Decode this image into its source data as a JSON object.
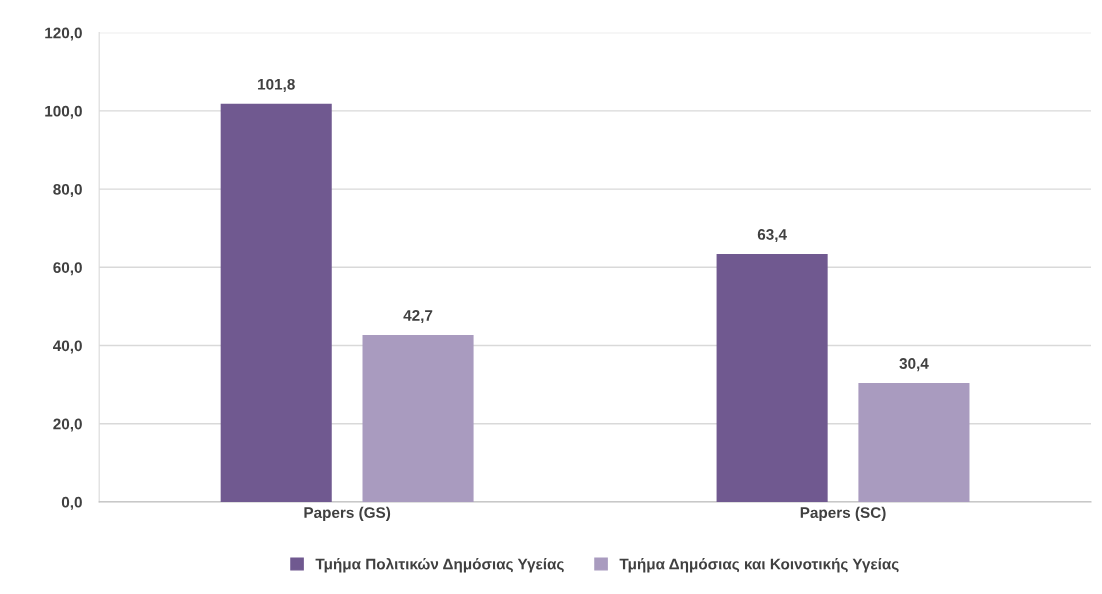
{
  "chart_data": {
    "type": "bar",
    "categories": [
      "Papers (GS)",
      "Papers (SC)"
    ],
    "series": [
      {
        "name": "Τμήμα Πολιτικών Δημόσιας Υγείας",
        "color": "#705990",
        "values": [
          101.8,
          63.4
        ],
        "value_labels": [
          "101,8",
          "63,4"
        ]
      },
      {
        "name": "Τμήμα Δημόσιας και Κοινοτικής Υγείας",
        "color": "#a99bbf",
        "values": [
          42.7,
          30.4
        ],
        "value_labels": [
          "42,7",
          "30,4"
        ]
      }
    ],
    "ylim": [
      0,
      120
    ],
    "yticks": [
      {
        "value": 0,
        "label": "0,0"
      },
      {
        "value": 20,
        "label": "20,0"
      },
      {
        "value": 40,
        "label": "40,0"
      },
      {
        "value": 60,
        "label": "60,0"
      },
      {
        "value": 80,
        "label": "80,0"
      },
      {
        "value": 100,
        "label": "100,0"
      },
      {
        "value": 120,
        "label": "120,0"
      }
    ],
    "grid": "y",
    "legend": "bottom"
  }
}
